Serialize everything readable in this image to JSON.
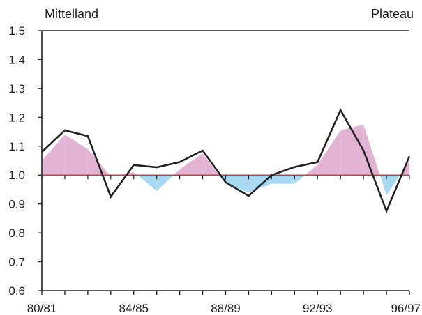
{
  "chart_data": {
    "type": "line",
    "title_left": "Mittelland",
    "title_right": "Plateau",
    "ylim": [
      0.6,
      1.5
    ],
    "yticks": [
      "0.6",
      "0.7",
      "0.8",
      "0.9",
      "1.0",
      "1.1",
      "1.2",
      "1.3",
      "1.4",
      "1.5"
    ],
    "xticks": [
      "80/81",
      "84/85",
      "88/89",
      "92/93",
      "96/97"
    ],
    "baseline": 1.0,
    "colors": {
      "above": "#e3b3d3",
      "below": "#a9d9f2",
      "line": "#222222"
    },
    "x": [
      "80/81",
      "81/82",
      "82/83",
      "83/84",
      "84/85",
      "85/86",
      "86/87",
      "87/88",
      "88/89",
      "89/90",
      "90/91",
      "91/92",
      "92/93",
      "93/94",
      "94/95",
      "95/96",
      "96/97"
    ],
    "series": [
      {
        "values": [
          1.08,
          1.155,
          1.135,
          0.925,
          1.035,
          1.027,
          1.045,
          1.085,
          0.975,
          0.928,
          1.0,
          1.028,
          1.045,
          1.225,
          1.085,
          0.875,
          1.065
        ]
      },
      {
        "values": [
          1.05,
          1.14,
          1.09,
          0.995,
          1.01,
          0.945,
          1.02,
          1.075,
          0.97,
          0.94,
          0.97,
          0.97,
          1.035,
          1.155,
          1.175,
          0.93,
          1.05
        ]
      }
    ]
  }
}
